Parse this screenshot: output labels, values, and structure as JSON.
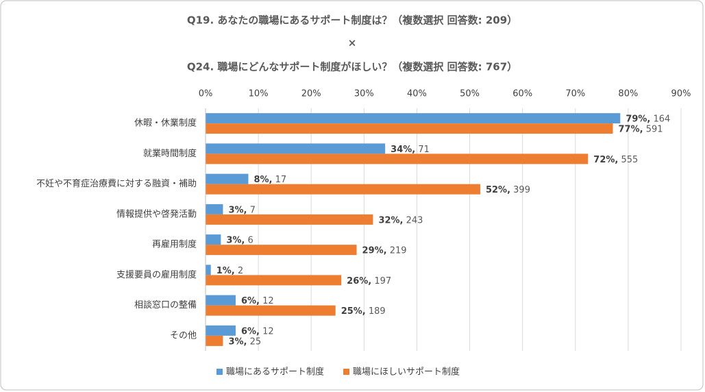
{
  "chart_data": {
    "type": "barh",
    "title": [
      "Q19. あなたの職場にあるサポート制度は？（複数選択 回答数: 209）",
      "×",
      "Q24. 職場にどんなサポート制度がほしい？（複数選択 回答数: 767）"
    ],
    "categories": [
      "休暇・休業制度",
      "就業時間制度",
      "不妊や不育症治療費に対する融資・補助",
      "情報提供や啓発活動",
      "再雇用制度",
      "支援要員の雇用制度",
      "相談窓口の整備",
      "その他"
    ],
    "series": [
      {
        "name": "職場にあるサポート制度",
        "color": "#5b9bd5",
        "values": [
          78.5,
          34.0,
          8.1,
          3.3,
          2.9,
          1.0,
          5.7,
          5.7
        ],
        "value_labels": [
          "79%, 164",
          "34%, 71",
          "8%, 17",
          "3%, 7",
          "3%, 6",
          "1%, 2",
          "6%, 12",
          "6%, 12"
        ]
      },
      {
        "name": "職場にほしいサポート制度",
        "color": "#ed7d31",
        "values": [
          77.1,
          72.4,
          52.0,
          31.7,
          28.6,
          25.7,
          24.6,
          3.3
        ],
        "value_labels": [
          "77%, 591",
          "72%, 555",
          "52%, 399",
          "32%, 243",
          "29%, 219",
          "26%, 197",
          "25%, 189",
          "3%, 25"
        ]
      }
    ],
    "xlim": [
      0,
      90
    ],
    "xticks": [
      {
        "value": 0,
        "label": "0%"
      },
      {
        "value": 10,
        "label": "10%"
      },
      {
        "value": 20,
        "label": "20%"
      },
      {
        "value": 30,
        "label": "30%"
      },
      {
        "value": 40,
        "label": "40%"
      },
      {
        "value": 50,
        "label": "50%"
      },
      {
        "value": 60,
        "label": "60%"
      },
      {
        "value": 70,
        "label": "70%"
      },
      {
        "value": 80,
        "label": "80%"
      },
      {
        "value": 90,
        "label": "90%"
      }
    ],
    "grid": true,
    "legend": "bottom"
  }
}
